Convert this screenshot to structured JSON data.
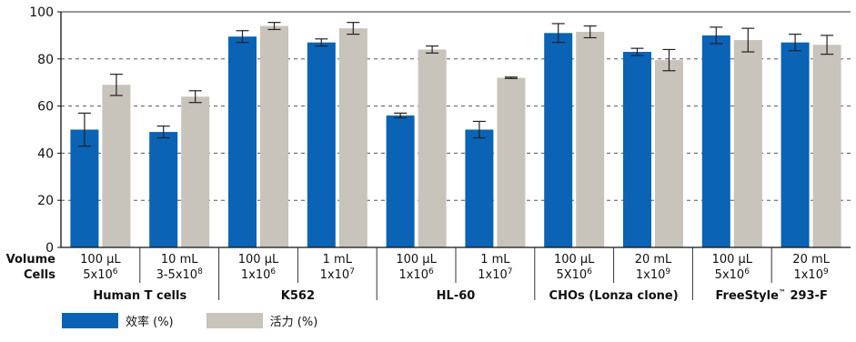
{
  "chart_data": {
    "type": "bar",
    "ylim": [
      0,
      100
    ],
    "yticks": [
      0,
      20,
      40,
      60,
      80,
      100
    ],
    "grid": "horizontal-dashed",
    "row_labels": [
      "Volume",
      "Cells"
    ],
    "categories": [
      {
        "volume": "100 µL",
        "cells": "5x10",
        "exp": "6"
      },
      {
        "volume": "10 mL",
        "cells": "3-5x10",
        "exp": "8"
      },
      {
        "volume": "100 µL",
        "cells": "1x10",
        "exp": "6"
      },
      {
        "volume": "1 mL",
        "cells": "1x10",
        "exp": "7"
      },
      {
        "volume": "100 µL",
        "cells": "1x10",
        "exp": "6"
      },
      {
        "volume": "1 mL",
        "cells": "1x10",
        "exp": "7"
      },
      {
        "volume": "100 µL",
        "cells": "5X10",
        "exp": "6"
      },
      {
        "volume": "20 mL",
        "cells": "1x10",
        "exp": "9"
      },
      {
        "volume": "100 µL",
        "cells": "5x10",
        "exp": "6"
      },
      {
        "volume": "20 mL",
        "cells": "1x10",
        "exp": "9"
      }
    ],
    "groups": [
      {
        "label": "Human T cells",
        "sup": "",
        "suffix": "",
        "span": 2
      },
      {
        "label": "K562",
        "sup": "",
        "suffix": "",
        "span": 2
      },
      {
        "label": "HL-60",
        "sup": "",
        "suffix": "",
        "span": 2
      },
      {
        "label": "CHOs (Lonza clone)",
        "sup": "",
        "suffix": "",
        "span": 2
      },
      {
        "label": "FreeStyle",
        "sup": "™",
        "suffix": " 293-F",
        "span": 2
      }
    ],
    "series": [
      {
        "name": "效率 (%)",
        "color": "#0a63b5",
        "values": [
          50,
          49,
          89.5,
          87,
          56,
          50,
          91,
          83,
          90,
          87
        ],
        "errors": [
          7,
          2.5,
          2.5,
          1.5,
          1,
          3.5,
          4,
          1.5,
          3.5,
          3.5
        ]
      },
      {
        "name": "活力 (%)",
        "color": "#c8c3bb",
        "values": [
          69,
          64,
          94,
          93,
          84,
          72,
          91.5,
          79.5,
          88,
          86
        ],
        "errors": [
          4.5,
          2.5,
          1.5,
          2.5,
          1.5,
          0.3,
          2.5,
          4.5,
          5,
          4
        ]
      }
    ]
  }
}
